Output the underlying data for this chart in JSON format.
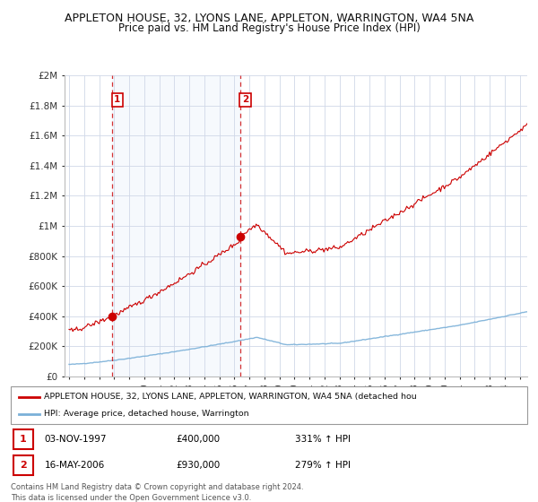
{
  "title": "APPLETON HOUSE, 32, LYONS LANE, APPLETON, WARRINGTON, WA4 5NA",
  "subtitle": "Price paid vs. HM Land Registry's House Price Index (HPI)",
  "background_color": "#ffffff",
  "grid_color": "#d0d8e8",
  "shade_color": "#dce8f8",
  "ylim": [
    0,
    2000000
  ],
  "yticks": [
    0,
    200000,
    400000,
    600000,
    800000,
    1000000,
    1200000,
    1400000,
    1600000,
    1800000,
    2000000
  ],
  "ytick_labels": [
    "£0",
    "£200K",
    "£400K",
    "£600K",
    "£800K",
    "£1M",
    "£1.2M",
    "£1.4M",
    "£1.6M",
    "£1.8M",
    "£2M"
  ],
  "sale1_date_x": 1997.84,
  "sale1_price": 400000,
  "sale2_date_x": 2006.37,
  "sale2_price": 930000,
  "sale1_label": "1",
  "sale2_label": "2",
  "xlim_left": 1994.7,
  "xlim_right": 2025.5,
  "legend_line1": "APPLETON HOUSE, 32, LYONS LANE, APPLETON, WARRINGTON, WA4 5NA (detached hou",
  "legend_line2": "HPI: Average price, detached house, Warrington",
  "table_row1": [
    "1",
    "03-NOV-1997",
    "£400,000",
    "331% ↑ HPI"
  ],
  "table_row2": [
    "2",
    "16-MAY-2006",
    "£930,000",
    "279% ↑ HPI"
  ],
  "footer": "Contains HM Land Registry data © Crown copyright and database right 2024.\nThis data is licensed under the Open Government Licence v3.0.",
  "red_color": "#cc0000",
  "blue_color": "#7ab0d8",
  "marker_color": "#cc0000"
}
